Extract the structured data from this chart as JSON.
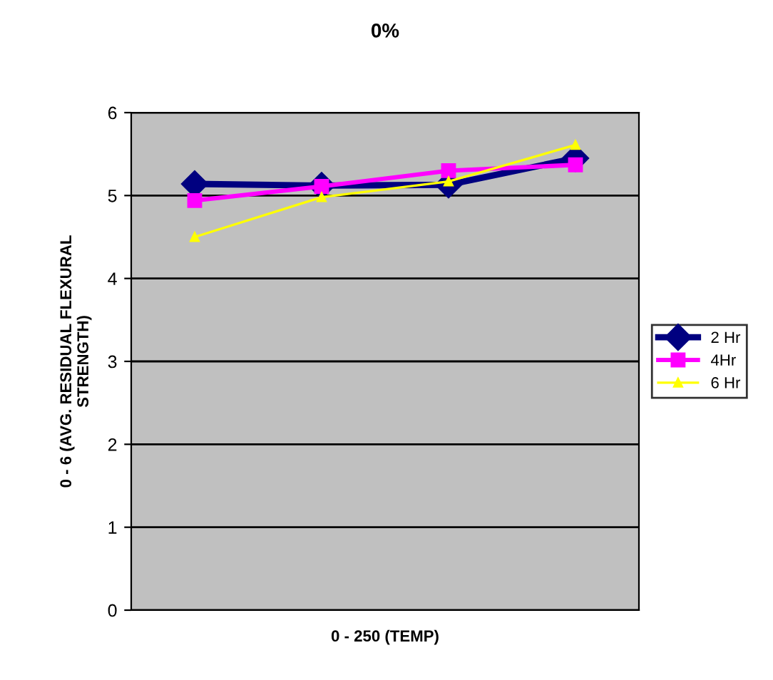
{
  "chart_data": {
    "type": "line",
    "title": "0%",
    "xlabel": "0 - 250 (TEMP)",
    "ylabel": "0 - 6 (AVG. RESIDUAL FLEXURAL\nSTRENGTH)",
    "categories": [
      null,
      null,
      null,
      null
    ],
    "series": [
      {
        "name": "2 Hr",
        "color": "#000080",
        "marker": "diamond",
        "values": [
          5.14,
          5.12,
          5.13,
          5.45
        ]
      },
      {
        "name": "4Hr",
        "color": "#ff00ff",
        "marker": "square",
        "values": [
          4.94,
          5.11,
          5.3,
          5.37
        ]
      },
      {
        "name": "6 Hr",
        "color": "#ffff00",
        "marker": "triangle",
        "values": [
          4.5,
          4.98,
          5.17,
          5.61
        ]
      }
    ],
    "ylim": [
      0,
      6
    ],
    "yticks": [
      0,
      1,
      2,
      3,
      4,
      5,
      6
    ],
    "grid": "y",
    "legend": "right",
    "tick_labels": "y"
  }
}
